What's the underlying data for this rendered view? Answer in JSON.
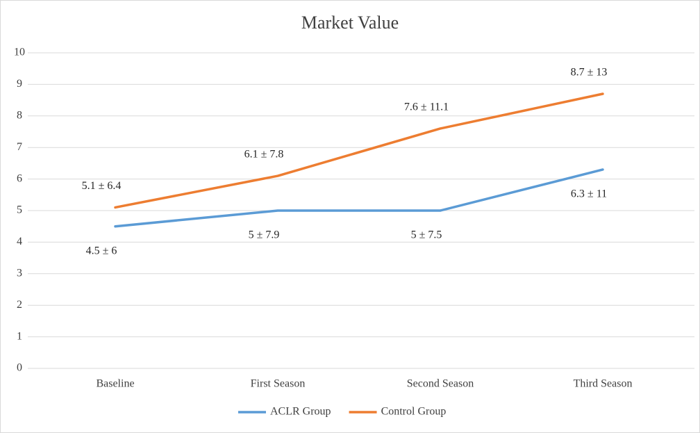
{
  "chart_data": {
    "type": "line",
    "title": "Market Value",
    "categories": [
      "Baseline",
      "First Season",
      "Second Season",
      "Third Season"
    ],
    "series": [
      {
        "name": "ACLR Group",
        "color": "#5b9bd5",
        "values": [
          4.5,
          5,
          5,
          6.3
        ],
        "value_labels": [
          "4.5 ± 6",
          "5 ± 7.9",
          "5 ± 7.5",
          "6.3 ± 11"
        ]
      },
      {
        "name": "Control Group",
        "color": "#ed7d31",
        "values": [
          5.1,
          6.1,
          7.6,
          8.7
        ],
        "value_labels": [
          "5.1 ± 6.4",
          "6.1 ± 7.8",
          "7.6 ± 11.1",
          "8.7 ± 13"
        ]
      }
    ],
    "ylim": [
      0,
      10
    ],
    "yticks": [
      0,
      1,
      2,
      3,
      4,
      5,
      6,
      7,
      8,
      9,
      10
    ],
    "grid": true,
    "legend": "bottom"
  }
}
